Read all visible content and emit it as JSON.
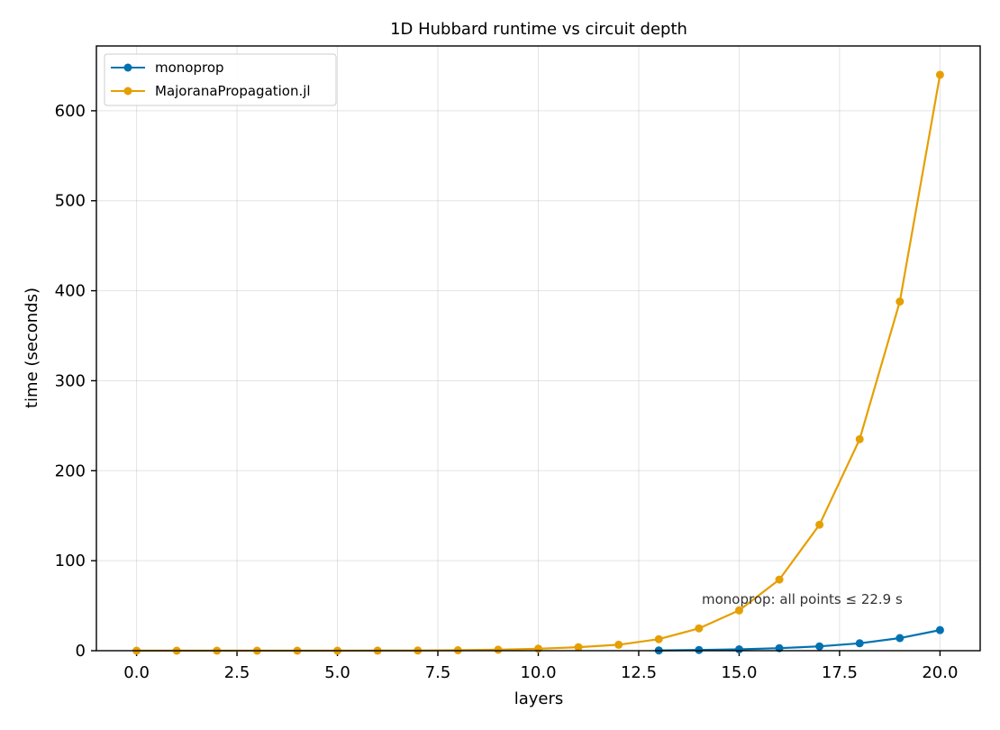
{
  "chart_data": {
    "type": "line",
    "title": "1D Hubbard runtime vs circuit depth",
    "xlabel": "layers",
    "ylabel": "time (seconds)",
    "xlim": [
      -1,
      21
    ],
    "ylim": [
      0,
      672
    ],
    "xticks": [
      0.0,
      2.5,
      5.0,
      7.5,
      10.0,
      12.5,
      15.0,
      17.5,
      20.0
    ],
    "xtick_labels": [
      "0.0",
      "2.5",
      "5.0",
      "7.5",
      "10.0",
      "12.5",
      "15.0",
      "17.5",
      "20.0"
    ],
    "yticks": [
      0,
      100,
      200,
      300,
      400,
      500,
      600
    ],
    "ytick_labels": [
      "0",
      "100",
      "200",
      "300",
      "400",
      "500",
      "600"
    ],
    "grid": true,
    "legend_position": "top-left",
    "annotation": "monoprop: all points ≤ 22.9 s",
    "series": [
      {
        "name": "monoprop",
        "color": "#0072b2",
        "x": [
          13,
          14,
          15,
          16,
          17,
          18,
          19,
          20
        ],
        "y": [
          0.3,
          0.8,
          1.5,
          2.8,
          4.8,
          8.2,
          14.0,
          22.9
        ]
      },
      {
        "name": "MajoranaPropagation.jl",
        "color": "#e69f00",
        "x": [
          0,
          1,
          2,
          3,
          4,
          5,
          6,
          7,
          8,
          9,
          10,
          11,
          12,
          13,
          14,
          15,
          16,
          17,
          18,
          19,
          20
        ],
        "y": [
          0.0,
          0.0,
          0.0,
          0.0,
          0.0,
          0.0,
          0.1,
          0.2,
          0.5,
          1.1,
          2.2,
          3.9,
          6.6,
          12.8,
          24.8,
          44.8,
          79.0,
          140.0,
          235.0,
          388.0,
          640.0
        ]
      }
    ]
  }
}
